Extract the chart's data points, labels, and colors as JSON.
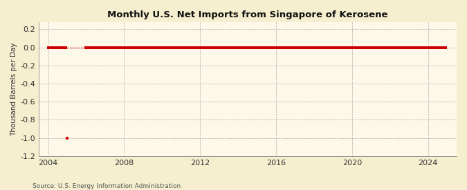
{
  "title": "Monthly U.S. Net Imports from Singapore of Kerosene",
  "ylabel": "Thousand Barrels per Day",
  "source": "Source: U.S. Energy Information Administration",
  "xlim": [
    2003.5,
    2025.5
  ],
  "ylim": [
    -1.2,
    0.28
  ],
  "yticks": [
    0.2,
    0.0,
    -0.2,
    -0.4,
    -0.6,
    -0.8,
    -1.0,
    -1.2
  ],
  "xticks": [
    2004,
    2008,
    2012,
    2016,
    2020,
    2024
  ],
  "background_color": "#f5eecf",
  "plot_bg_color": "#fdf8e8",
  "line_color": "#cc0000",
  "marker_color": "#cc0000",
  "grid_color": "#999999",
  "outlier_year": 2005.0,
  "outlier_value": -1.0,
  "data_years": [
    2004.0,
    2004.083,
    2004.167,
    2004.25,
    2004.333,
    2004.417,
    2004.5,
    2004.583,
    2004.667,
    2004.75,
    2004.833,
    2004.917,
    2006.0,
    2006.083,
    2006.167,
    2006.25,
    2006.333,
    2006.417,
    2006.5,
    2006.583,
    2006.667,
    2006.75,
    2006.833,
    2006.917,
    2007.0,
    2007.083,
    2007.167,
    2007.25,
    2007.333,
    2007.417,
    2007.5,
    2007.583,
    2007.667,
    2007.75,
    2007.833,
    2007.917,
    2008.0,
    2008.083,
    2008.167,
    2008.25,
    2008.333,
    2008.417,
    2008.5,
    2008.583,
    2008.667,
    2008.75,
    2008.833,
    2008.917,
    2009.0,
    2009.083,
    2009.167,
    2009.25,
    2009.333,
    2009.417,
    2009.5,
    2009.583,
    2009.667,
    2009.75,
    2009.833,
    2009.917,
    2010.0,
    2010.083,
    2010.167,
    2010.25,
    2010.333,
    2010.417,
    2010.5,
    2010.583,
    2010.667,
    2010.75,
    2010.833,
    2010.917,
    2011.0,
    2011.083,
    2011.167,
    2011.25,
    2011.333,
    2011.417,
    2011.5,
    2011.583,
    2011.667,
    2011.75,
    2011.833,
    2011.917,
    2012.0,
    2012.083,
    2012.167,
    2012.25,
    2012.333,
    2012.417,
    2012.5,
    2012.583,
    2012.667,
    2012.75,
    2012.833,
    2012.917,
    2013.0,
    2013.083,
    2013.167,
    2013.25,
    2013.333,
    2013.417,
    2013.5,
    2013.583,
    2013.667,
    2013.75,
    2013.833,
    2013.917,
    2014.0,
    2014.083,
    2014.167,
    2014.25,
    2014.333,
    2014.417,
    2014.5,
    2014.583,
    2014.667,
    2014.75,
    2014.833,
    2014.917,
    2015.0,
    2015.083,
    2015.167,
    2015.25,
    2015.333,
    2015.417,
    2015.5,
    2015.583,
    2015.667,
    2015.75,
    2015.833,
    2015.917,
    2016.0,
    2016.083,
    2016.167,
    2016.25,
    2016.333,
    2016.417,
    2016.5,
    2016.583,
    2016.667,
    2016.75,
    2016.833,
    2016.917,
    2017.0,
    2017.083,
    2017.167,
    2017.25,
    2017.333,
    2017.417,
    2017.5,
    2017.583,
    2017.667,
    2017.75,
    2017.833,
    2017.917,
    2018.0,
    2018.083,
    2018.167,
    2018.25,
    2018.333,
    2018.417,
    2018.5,
    2018.583,
    2018.667,
    2018.75,
    2018.833,
    2018.917,
    2019.0,
    2019.083,
    2019.167,
    2019.25,
    2019.333,
    2019.417,
    2019.5,
    2019.583,
    2019.667,
    2019.75,
    2019.833,
    2019.917,
    2020.0,
    2020.083,
    2020.167,
    2020.25,
    2020.333,
    2020.417,
    2020.5,
    2020.583,
    2020.667,
    2020.75,
    2020.833,
    2020.917,
    2021.0,
    2021.083,
    2021.167,
    2021.25,
    2021.333,
    2021.417,
    2021.5,
    2021.583,
    2021.667,
    2021.75,
    2021.833,
    2021.917,
    2022.0,
    2022.083,
    2022.167,
    2022.25,
    2022.333,
    2022.417,
    2022.5,
    2022.583,
    2022.667,
    2022.75,
    2022.833,
    2022.917,
    2023.0,
    2023.083,
    2023.167,
    2023.25,
    2023.333,
    2023.417,
    2023.5,
    2023.583,
    2023.667,
    2023.75,
    2023.833,
    2023.917,
    2024.0,
    2024.083,
    2024.167,
    2024.25,
    2024.333,
    2024.417,
    2024.5,
    2024.583,
    2024.667,
    2024.75,
    2024.833,
    2024.917
  ],
  "data_values": [
    0,
    0,
    0,
    0,
    0,
    0,
    0,
    0,
    0,
    0,
    0,
    0,
    0,
    0,
    0,
    0,
    0,
    0,
    0,
    0,
    0,
    0,
    0,
    0,
    0,
    0,
    0,
    0,
    0,
    0,
    0,
    0,
    0,
    0,
    0,
    0,
    0,
    0,
    0,
    0,
    0,
    0,
    0,
    0,
    0,
    0,
    0,
    0,
    0,
    0,
    0,
    0,
    0,
    0,
    0,
    0,
    0,
    0,
    0,
    0,
    0,
    0,
    0,
    0,
    0,
    0,
    0,
    0,
    0,
    0,
    0,
    0,
    0,
    0,
    0,
    0,
    0,
    0,
    0,
    0,
    0,
    0,
    0,
    0,
    0,
    0,
    0,
    0,
    0,
    0,
    0,
    0,
    0,
    0,
    0,
    0,
    0,
    0,
    0,
    0,
    0,
    0,
    0,
    0,
    0,
    0,
    0,
    0,
    0,
    0,
    0,
    0,
    0,
    0,
    0,
    0,
    0,
    0,
    0,
    0,
    0,
    0,
    0,
    0,
    0,
    0,
    0,
    0,
    0,
    0,
    0,
    0,
    0,
    0,
    0,
    0,
    0,
    0,
    0,
    0,
    0,
    0,
    0,
    0,
    0,
    0,
    0,
    0,
    0,
    0,
    0,
    0,
    0,
    0,
    0,
    0,
    0,
    0,
    0,
    0,
    0,
    0,
    0,
    0,
    0,
    0,
    0,
    0,
    0,
    0,
    0,
    0,
    0,
    0,
    0,
    0,
    0,
    0,
    0,
    0,
    0,
    0,
    0,
    0,
    0,
    0,
    0,
    0,
    0,
    0,
    0,
    0,
    0,
    0,
    0,
    0,
    0,
    0,
    0,
    0,
    0,
    0,
    0,
    0,
    0,
    0,
    0,
    0,
    0,
    0,
    0,
    0,
    0,
    0,
    0,
    0,
    0,
    0,
    0,
    0,
    0,
    0,
    0,
    0,
    0,
    0,
    0,
    0,
    0,
    0,
    0,
    0,
    0,
    0,
    0,
    0,
    0,
    0,
    0,
    0
  ]
}
